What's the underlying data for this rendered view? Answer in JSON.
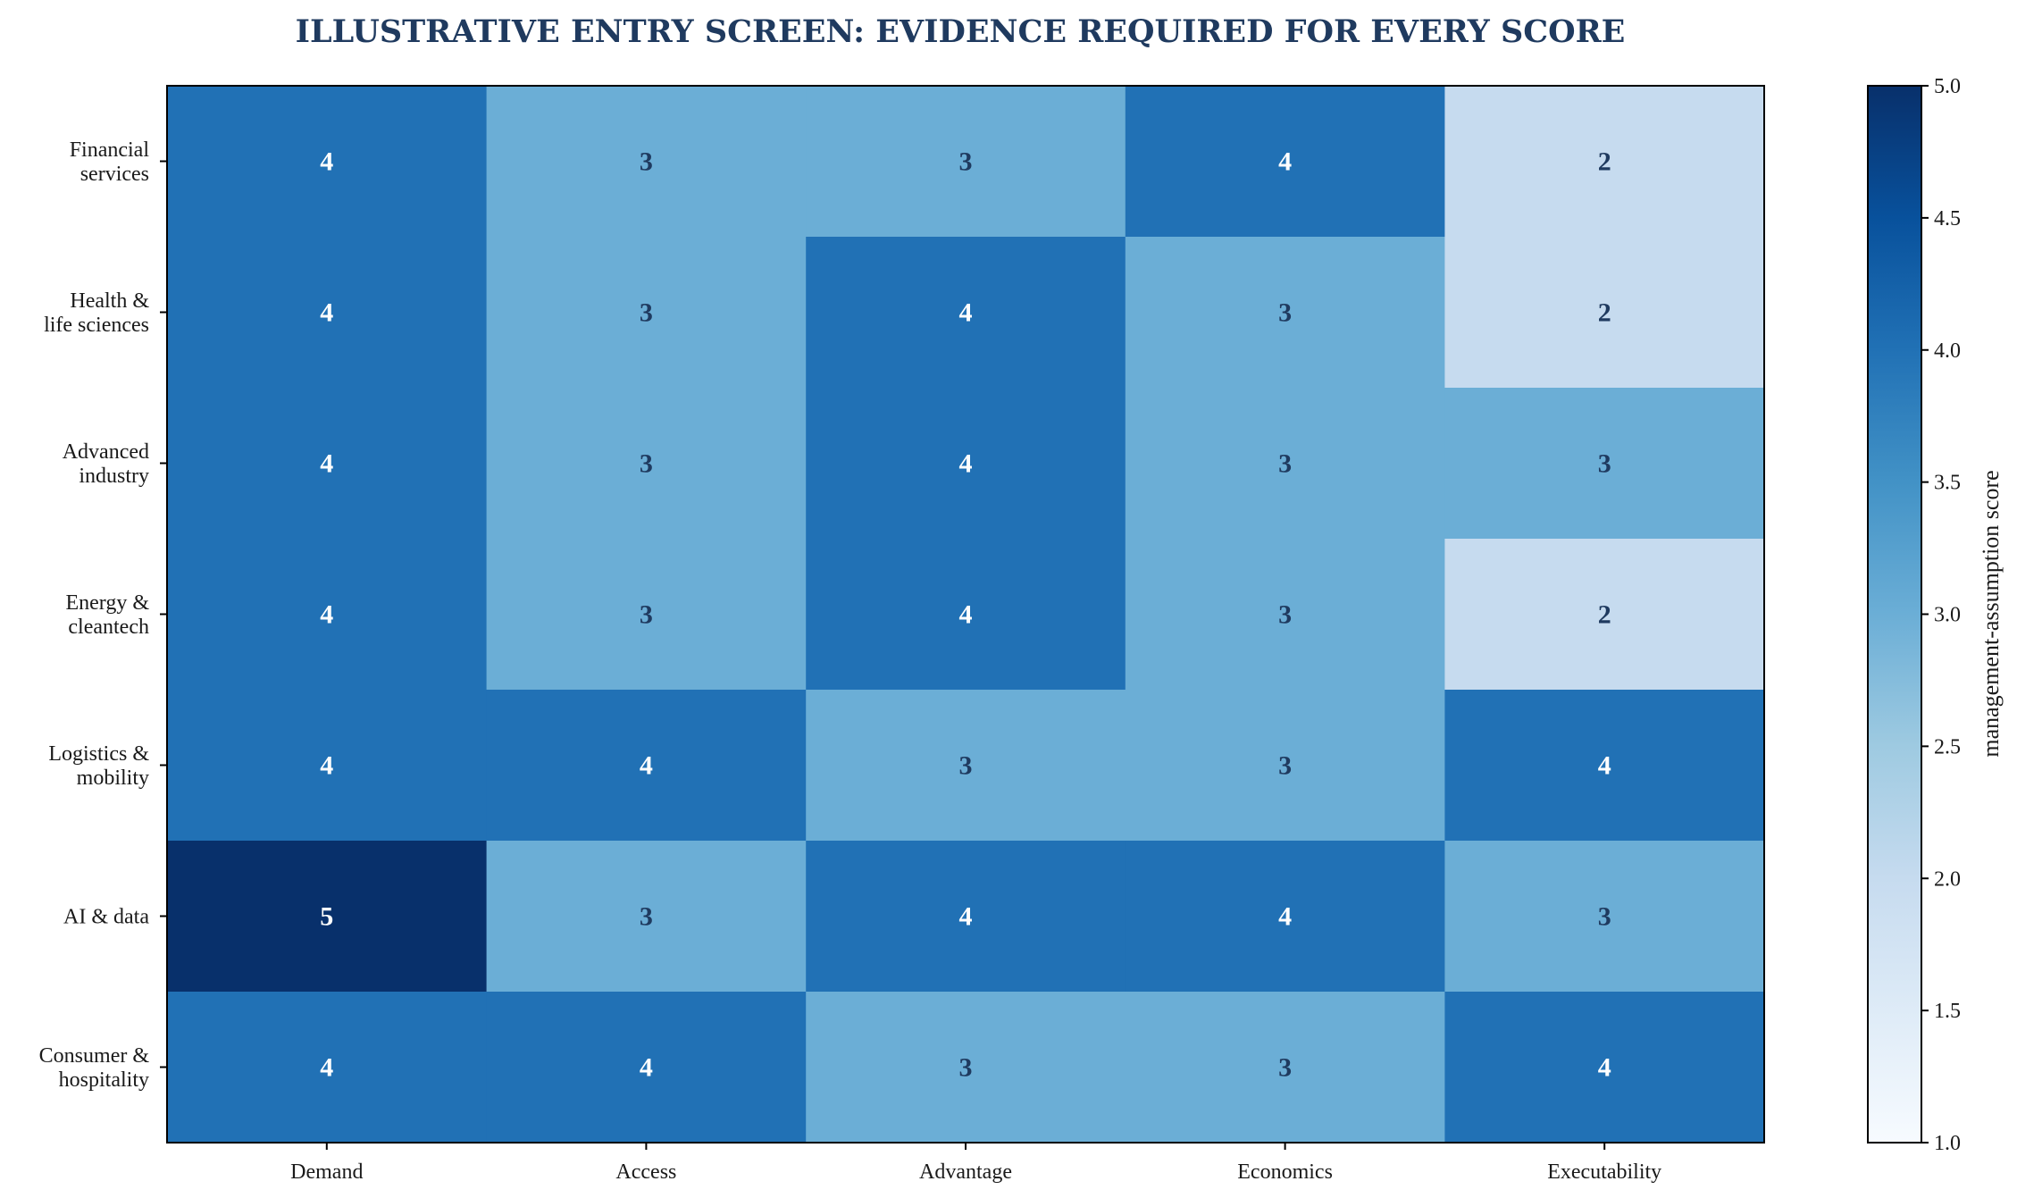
{
  "chart_data": {
    "type": "heatmap",
    "title": "ILLUSTRATIVE ENTRY SCREEN: EVIDENCE REQUIRED FOR EVERY SCORE",
    "columns": [
      "Demand",
      "Access",
      "Advantage",
      "Economics",
      "Executability"
    ],
    "rows": [
      [
        "Financial",
        "services"
      ],
      [
        "Health &",
        "life sciences"
      ],
      [
        "Advanced",
        "industry"
      ],
      [
        "Energy &",
        "cleantech"
      ],
      [
        "Logistics &",
        "mobility"
      ],
      [
        "AI & data"
      ],
      [
        "Consumer &",
        "hospitality"
      ]
    ],
    "values": [
      [
        4,
        3,
        3,
        4,
        2
      ],
      [
        4,
        3,
        4,
        3,
        2
      ],
      [
        4,
        3,
        4,
        3,
        3
      ],
      [
        4,
        3,
        4,
        3,
        2
      ],
      [
        4,
        4,
        3,
        3,
        4
      ],
      [
        5,
        3,
        4,
        4,
        3
      ],
      [
        4,
        4,
        3,
        3,
        4
      ]
    ],
    "colormap": "Blues",
    "vmin": 1,
    "vmax": 5,
    "colorbar": {
      "label": "management-assumption score",
      "ticks": [
        "1.0",
        "1.5",
        "2.0",
        "2.5",
        "3.0",
        "3.5",
        "4.0",
        "4.5",
        "5.0"
      ]
    },
    "colors": {
      "title": "#1f3a5f",
      "label_light": "#ffffff",
      "label_dark": "#1f3a5f"
    }
  }
}
